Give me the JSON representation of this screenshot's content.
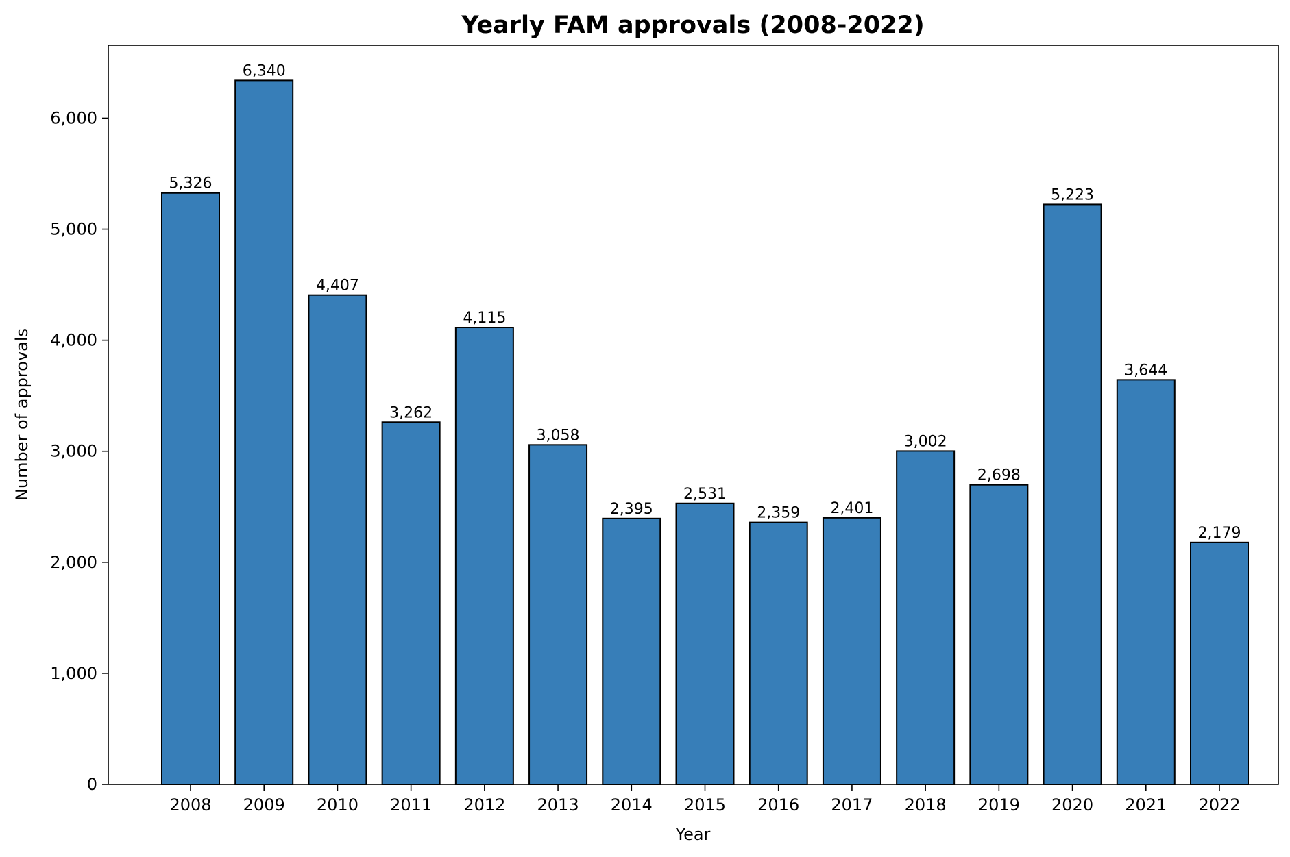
{
  "chart_data": {
    "type": "bar",
    "title": "Yearly FAM approvals (2008-2022)",
    "xlabel": "Year",
    "ylabel": "Number of approvals",
    "categories": [
      "2008",
      "2009",
      "2010",
      "2011",
      "2012",
      "2013",
      "2014",
      "2015",
      "2016",
      "2017",
      "2018",
      "2019",
      "2020",
      "2021",
      "2022"
    ],
    "values": [
      5326,
      6340,
      4407,
      3262,
      4115,
      3058,
      2395,
      2531,
      2359,
      2401,
      3002,
      2698,
      5223,
      3644,
      2179
    ],
    "data_labels": [
      "5,326",
      "6,340",
      "4,407",
      "3,262",
      "4,115",
      "3,058",
      "2,395",
      "2,531",
      "2,359",
      "2,401",
      "3,002",
      "2,698",
      "5,223",
      "3,644",
      "2,179"
    ],
    "ylim": [
      0,
      6657
    ],
    "yticks": [
      0,
      1000,
      2000,
      3000,
      4000,
      5000,
      6000
    ],
    "ytick_labels": [
      "0",
      "1,000",
      "2,000",
      "3,000",
      "4,000",
      "5,000",
      "6,000"
    ],
    "bar_color": "#377eb8",
    "bar_edge_color": "#000000",
    "grid": false,
    "legend": false
  }
}
